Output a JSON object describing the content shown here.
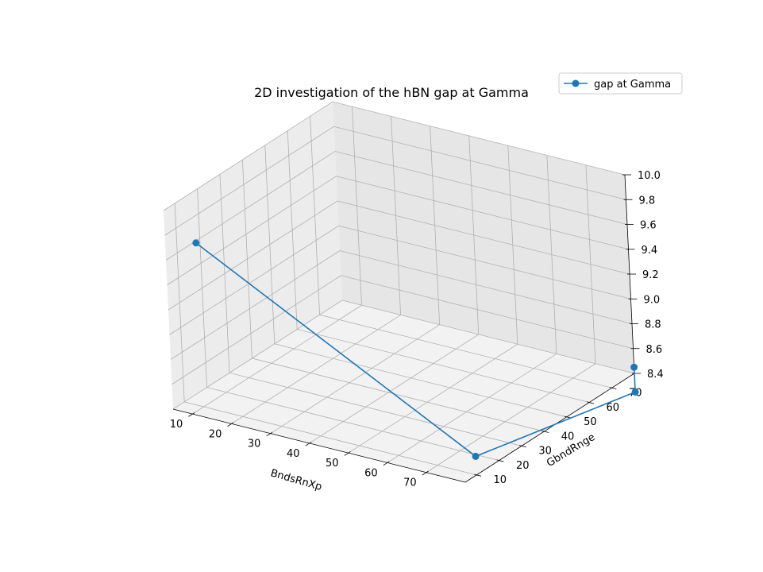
{
  "chart_data": {
    "type": "line",
    "projection": "3d",
    "title": "2D investigation of the hBN gap at Gamma",
    "xlabel": "BndsRnXp",
    "ylabel": "GbndRnge",
    "zlabel": "",
    "xticks": [
      "10",
      "20",
      "30",
      "40",
      "50",
      "60",
      "70"
    ],
    "yticks": [
      "10",
      "20",
      "30",
      "40",
      "50",
      "60",
      "70"
    ],
    "zticks": [
      "8.4",
      "8.6",
      "8.8",
      "9.0",
      "9.2",
      "9.4",
      "9.6",
      "9.8",
      "10.0"
    ],
    "xlim": [
      5,
      80
    ],
    "ylim": [
      5,
      80
    ],
    "zlim": [
      8.4,
      10.0
    ],
    "grid": true,
    "legend_position": "top-right",
    "series": [
      {
        "name": "gap at Gamma",
        "color": "#1f77b4",
        "marker": "circle",
        "x": [
          10,
          80,
          80,
          80
        ],
        "y": [
          10,
          10,
          80,
          80
        ],
        "z": [
          9.72,
          8.55,
          8.25,
          8.45
        ]
      }
    ]
  },
  "colors": {
    "pane_left": "#ececec",
    "pane_right": "#e6e6e6",
    "pane_floor": "#f2f2f2",
    "grid": "#b0b0b0",
    "series": "#1f77b4"
  }
}
